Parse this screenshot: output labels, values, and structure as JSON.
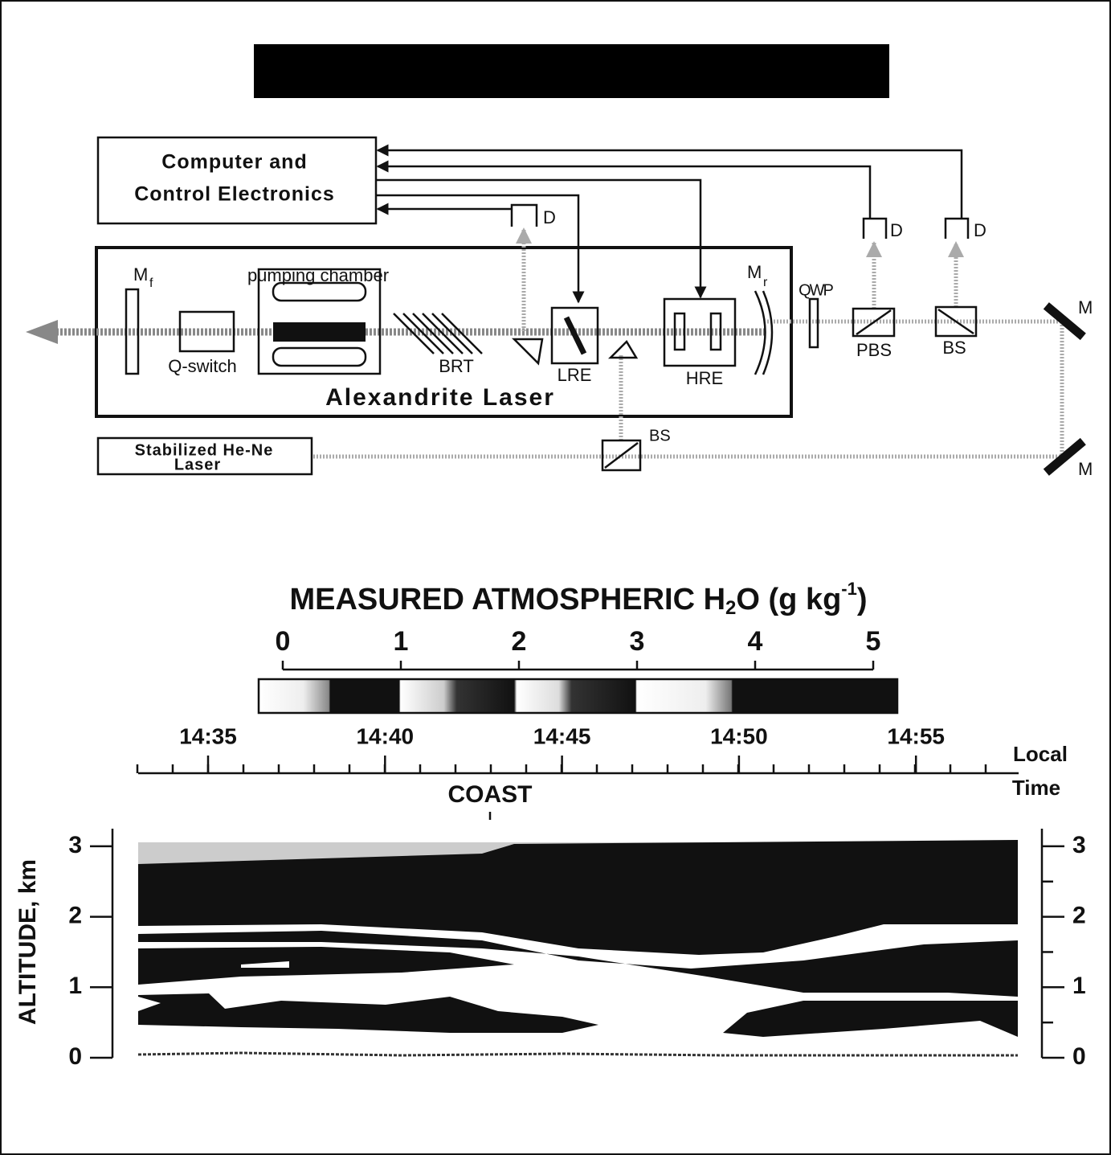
{
  "diagram": {
    "computer_line1": "Computer and",
    "computer_line2": "Control Electronics",
    "detector_1": "D",
    "detector_2": "D",
    "detector_3": "D",
    "mirror_f": "M",
    "mirror_f_sub": "f",
    "pumping_chamber": "pumping chamber",
    "q_switch": "Q-switch",
    "brt": "BRT",
    "lre": "LRE",
    "hre": "HRE",
    "mirror_r": "M",
    "mirror_r_sub": "r",
    "qwp": "QWP",
    "pbs": "PBS",
    "bs_1": "BS",
    "bs_2": "BS",
    "mirror_1": "M",
    "mirror_2": "M",
    "laser_title": "Alexandrite Laser",
    "hene_line1": "Stabilized He-Ne",
    "hene_line2": "Laser"
  },
  "colorbar": {
    "title_parts": [
      "MEASURED ATMOSPHERIC H",
      "2",
      "O (g kg",
      "-1",
      ")"
    ],
    "ticks": [
      0,
      1,
      2,
      3,
      4,
      5
    ]
  },
  "time_axis": {
    "ticks": [
      "14:35",
      "14:40",
      "14:45",
      "14:50",
      "14:55"
    ],
    "label_line1": "Local",
    "label_line2": "Time",
    "annotation": "COAST"
  },
  "altitude_axis": {
    "label": "ALTITUDE, km",
    "ylim": [
      0,
      3.25
    ],
    "ticks": [
      0,
      1,
      2,
      3
    ]
  }
}
